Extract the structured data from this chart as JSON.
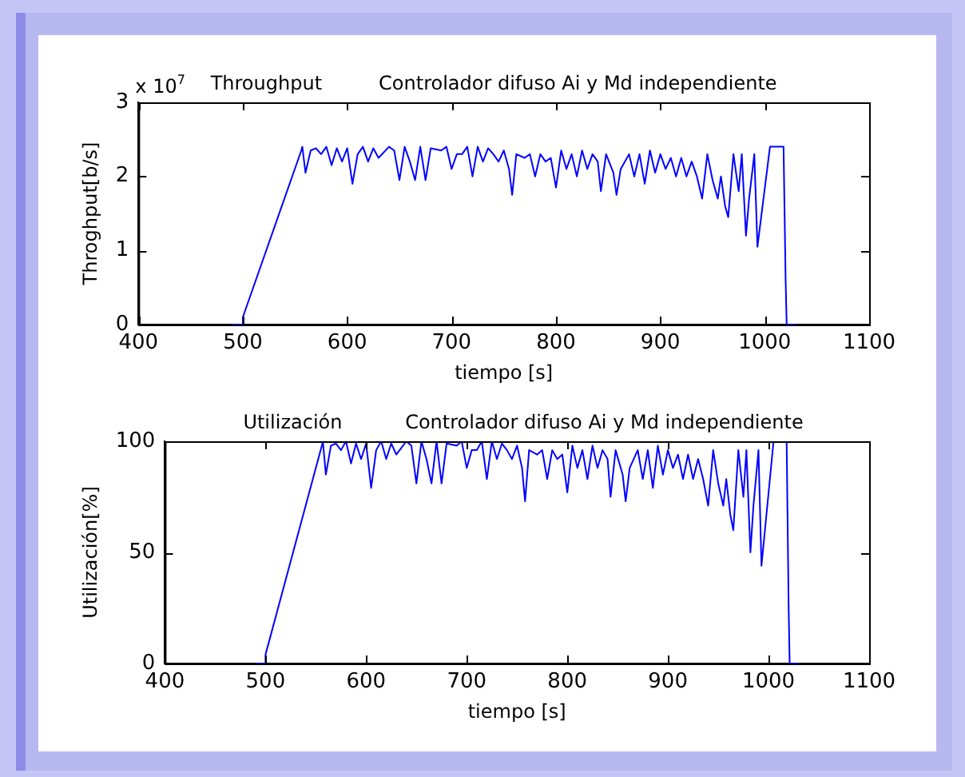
{
  "chart_data": [
    {
      "type": "line",
      "title": "Throughput",
      "subtitle": "Controlador difuso Ai y Md independiente",
      "xlabel": "tiempo [s]",
      "ylabel": "Throghput[b/s]",
      "annotations": [
        "x 10$^{7}$"
      ],
      "xlim": [
        400,
        1100
      ],
      "xticks": [
        400,
        500,
        600,
        700,
        800,
        900,
        1000,
        1100
      ],
      "ylim": [
        0,
        3
      ],
      "yticks": [
        0,
        1,
        2,
        3
      ],
      "x": [
        490,
        500,
        500,
        556,
        557,
        560,
        565,
        570,
        575,
        580,
        585,
        590,
        595,
        600,
        605,
        610,
        615,
        620,
        625,
        630,
        640,
        645,
        650,
        655,
        660,
        665,
        670,
        675,
        680,
        690,
        695,
        700,
        705,
        710,
        715,
        720,
        725,
        730,
        735,
        740,
        745,
        750,
        755,
        758,
        762,
        770,
        775,
        780,
        785,
        790,
        795,
        800,
        805,
        810,
        815,
        820,
        825,
        830,
        835,
        840,
        843,
        848,
        855,
        858,
        862,
        870,
        875,
        880,
        885,
        890,
        895,
        900,
        905,
        910,
        915,
        920,
        925,
        930,
        935,
        940,
        945,
        950,
        955,
        958,
        962,
        965,
        970,
        975,
        978,
        982,
        985,
        990,
        993,
        1005,
        1018,
        1020,
        1021,
        1030
      ],
      "series": [
        {
          "color": "#0000ff",
          "values": [
            0,
            0,
            0.1,
            2.35,
            2.4,
            2.05,
            2.35,
            2.38,
            2.3,
            2.4,
            2.15,
            2.38,
            2.2,
            2.38,
            1.9,
            2.3,
            2.4,
            2.2,
            2.38,
            2.25,
            2.4,
            2.35,
            1.95,
            2.4,
            2.2,
            1.95,
            2.4,
            1.95,
            2.38,
            2.35,
            2.4,
            2.1,
            2.3,
            2.3,
            2.4,
            2.0,
            2.4,
            2.2,
            2.38,
            2.3,
            2.2,
            2.35,
            2.1,
            1.75,
            2.3,
            2.25,
            2.3,
            2.0,
            2.3,
            2.2,
            2.25,
            1.85,
            2.35,
            2.1,
            2.3,
            2.0,
            2.35,
            2.1,
            2.3,
            2.2,
            1.8,
            2.3,
            2.05,
            1.75,
            2.1,
            2.3,
            2.0,
            2.3,
            1.9,
            2.35,
            2.05,
            2.3,
            2.1,
            2.25,
            2.0,
            2.25,
            2.0,
            2.2,
            2.0,
            1.7,
            2.3,
            1.95,
            1.7,
            2.0,
            1.6,
            1.45,
            2.3,
            1.8,
            2.3,
            1.2,
            1.7,
            2.3,
            1.05,
            2.4,
            2.4,
            0.6,
            0,
            0
          ]
        }
      ]
    },
    {
      "type": "line",
      "title": "Utilización",
      "subtitle": "Controlador difuso Ai y Md independiente",
      "xlabel": "tiempo [s]",
      "ylabel": "Utilización[%]",
      "xlim": [
        400,
        1100
      ],
      "xticks": [
        400,
        500,
        600,
        700,
        800,
        900,
        1000,
        1100
      ],
      "ylim": [
        0,
        100
      ],
      "yticks": [
        0,
        50,
        100
      ],
      "x": [
        490,
        500,
        500,
        556,
        557,
        560,
        565,
        570,
        575,
        580,
        585,
        590,
        595,
        600,
        605,
        610,
        615,
        620,
        625,
        630,
        640,
        645,
        650,
        655,
        660,
        665,
        670,
        675,
        680,
        690,
        695,
        700,
        705,
        710,
        715,
        720,
        725,
        730,
        735,
        740,
        745,
        750,
        755,
        758,
        762,
        770,
        775,
        780,
        785,
        790,
        795,
        800,
        805,
        810,
        815,
        820,
        825,
        830,
        835,
        840,
        843,
        848,
        855,
        858,
        862,
        870,
        875,
        880,
        885,
        890,
        895,
        900,
        905,
        910,
        915,
        920,
        925,
        930,
        935,
        940,
        945,
        950,
        955,
        958,
        962,
        965,
        970,
        975,
        978,
        982,
        985,
        990,
        993,
        1005,
        1018,
        1020,
        1021,
        1030
      ],
      "series": [
        {
          "color": "#0000ff",
          "values": [
            0,
            0,
            4,
            98,
            100,
            85,
            98,
            99,
            96,
            100,
            90,
            99,
            92,
            99,
            79,
            96,
            100,
            92,
            99,
            94,
            100,
            98,
            81,
            100,
            92,
            81,
            100,
            81,
            99,
            98,
            100,
            88,
            96,
            96,
            100,
            83,
            100,
            92,
            99,
            96,
            92,
            98,
            88,
            73,
            96,
            94,
            96,
            83,
            96,
            92,
            94,
            77,
            98,
            88,
            96,
            83,
            98,
            88,
            96,
            92,
            75,
            96,
            85,
            73,
            88,
            96,
            83,
            96,
            79,
            98,
            85,
            96,
            88,
            94,
            83,
            94,
            83,
            92,
            83,
            71,
            96,
            81,
            71,
            83,
            67,
            60,
            96,
            75,
            96,
            50,
            71,
            96,
            44,
            100,
            100,
            25,
            0,
            0
          ]
        }
      ]
    }
  ]
}
